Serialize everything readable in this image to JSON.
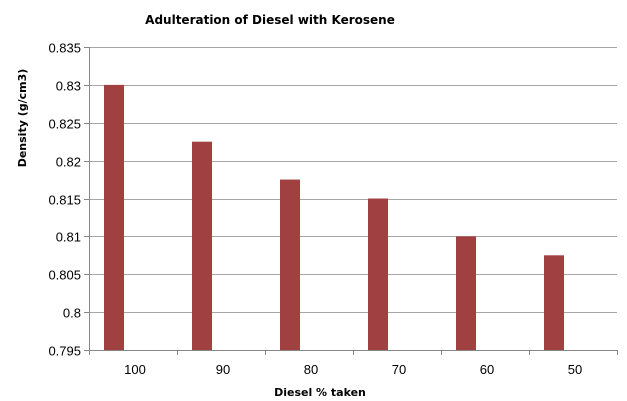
{
  "chart_data": {
    "type": "bar",
    "title": "Adulteration of Diesel with Kerosene",
    "xlabel": "Diesel % taken",
    "ylabel": "Density (g/cm3)",
    "categories": [
      "100",
      "90",
      "80",
      "70",
      "60",
      "50"
    ],
    "values": [
      0.83,
      0.8225,
      0.8175,
      0.815,
      0.81,
      0.8075
    ],
    "ylim": [
      0.795,
      0.835
    ],
    "yticks": [
      "0.835",
      "0.83",
      "0.825",
      "0.82",
      "0.815",
      "0.81",
      "0.805",
      "0.8",
      "0.795"
    ],
    "grid": true,
    "legend": "none",
    "bar_color": "#a04040"
  }
}
